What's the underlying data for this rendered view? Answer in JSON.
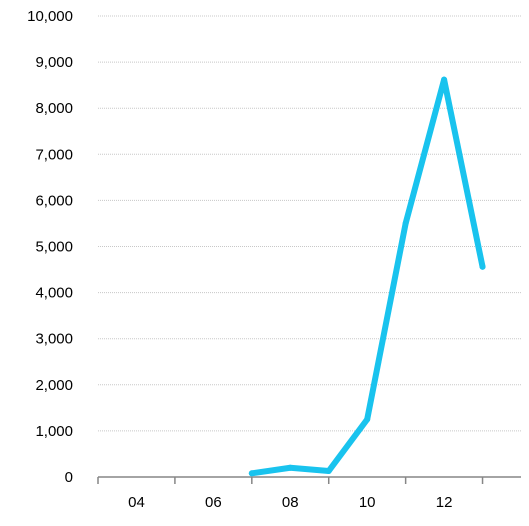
{
  "chart_data": {
    "type": "line",
    "title": "",
    "xlabel": "",
    "ylabel": "",
    "x_tick_labels": [
      "04",
      "06",
      "08",
      "10",
      "12"
    ],
    "y_tick_labels": [
      "0",
      "1,000",
      "2,000",
      "3,000",
      "4,000",
      "5,000",
      "6,000",
      "7,000",
      "8,000",
      "9,000",
      "10,000"
    ],
    "ylim": [
      0,
      10000
    ],
    "x_range": [
      2003,
      2014
    ],
    "grid": "horizontal",
    "legend": "none",
    "series": [
      {
        "color": "#19c3ee",
        "x": [
          2007,
          2008,
          2009,
          2010,
          2011,
          2012,
          2013
        ],
        "values": [
          80,
          200,
          130,
          1250,
          5500,
          8620,
          4560
        ]
      }
    ]
  }
}
